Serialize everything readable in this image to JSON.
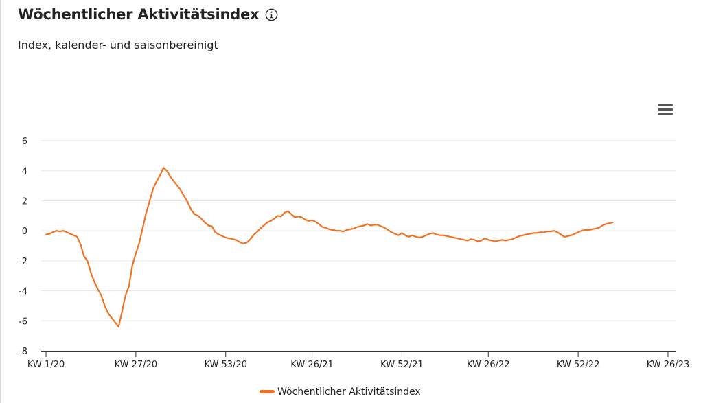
{
  "header": {
    "title": "Wöchentlicher Aktivitätsindex",
    "subtitle": "Index, kalender- und saisonbereinigt"
  },
  "icons": {
    "info": "info-circle-icon",
    "menu": "hamburger-menu-icon"
  },
  "colors": {
    "series": "#f07222",
    "grid": "#e6e6e6",
    "axis": "#333333"
  },
  "chart_data": {
    "type": "line",
    "title": "",
    "xlabel": "",
    "ylabel": "",
    "ylim": [
      -8,
      6
    ],
    "yticks": [
      6,
      4,
      2,
      0,
      -2,
      -4,
      -6,
      -8
    ],
    "xtick_labels": [
      "KW 1/20",
      "KW 27/20",
      "KW 53/20",
      "KW 26/21",
      "KW 52/21",
      "KW 26/22",
      "KW 52/22",
      "KW 26/23"
    ],
    "xtick_weeks": [
      0,
      26,
      52,
      77,
      103,
      128,
      154,
      180
    ],
    "grid": true,
    "legend": "bottom-center",
    "series": [
      {
        "name": "Wöchentlicher Aktivitätsindex",
        "color": "#f07222",
        "points": [
          [
            0,
            -0.25
          ],
          [
            1,
            -0.2
          ],
          [
            2,
            -0.1
          ],
          [
            3,
            0.0
          ],
          [
            4,
            -0.05
          ],
          [
            5,
            0.0
          ],
          [
            6,
            -0.1
          ],
          [
            7,
            -0.2
          ],
          [
            8,
            -0.3
          ],
          [
            9,
            -0.4
          ],
          [
            10,
            -0.9
          ],
          [
            11,
            -1.7
          ],
          [
            12,
            -2.0
          ],
          [
            13,
            -2.8
          ],
          [
            14,
            -3.4
          ],
          [
            15,
            -3.9
          ],
          [
            16,
            -4.3
          ],
          [
            17,
            -5.0
          ],
          [
            18,
            -5.5
          ],
          [
            19,
            -5.8
          ],
          [
            20,
            -6.1
          ],
          [
            21,
            -6.4
          ],
          [
            22,
            -5.4
          ],
          [
            23,
            -4.3
          ],
          [
            24,
            -3.7
          ],
          [
            25,
            -2.3
          ],
          [
            26,
            -1.5
          ],
          [
            27,
            -0.8
          ],
          [
            28,
            0.2
          ],
          [
            29,
            1.2
          ],
          [
            30,
            2.0
          ],
          [
            31,
            2.8
          ],
          [
            32,
            3.3
          ],
          [
            33,
            3.7
          ],
          [
            34,
            4.2
          ],
          [
            35,
            4.0
          ],
          [
            36,
            3.6
          ],
          [
            37,
            3.3
          ],
          [
            38,
            3.0
          ],
          [
            39,
            2.7
          ],
          [
            40,
            2.3
          ],
          [
            41,
            1.9
          ],
          [
            42,
            1.4
          ],
          [
            43,
            1.1
          ],
          [
            44,
            1.0
          ],
          [
            45,
            0.8
          ],
          [
            46,
            0.55
          ],
          [
            47,
            0.35
          ],
          [
            48,
            0.3
          ],
          [
            49,
            -0.1
          ],
          [
            50,
            -0.25
          ],
          [
            51,
            -0.35
          ],
          [
            52,
            -0.45
          ],
          [
            53,
            -0.5
          ],
          [
            54,
            -0.55
          ],
          [
            55,
            -0.6
          ],
          [
            56,
            -0.75
          ],
          [
            57,
            -0.85
          ],
          [
            58,
            -0.8
          ],
          [
            59,
            -0.6
          ],
          [
            60,
            -0.3
          ],
          [
            61,
            -0.1
          ],
          [
            62,
            0.15
          ],
          [
            63,
            0.35
          ],
          [
            64,
            0.55
          ],
          [
            65,
            0.65
          ],
          [
            66,
            0.8
          ],
          [
            67,
            1.0
          ],
          [
            68,
            0.95
          ],
          [
            69,
            1.2
          ],
          [
            70,
            1.3
          ],
          [
            71,
            1.1
          ],
          [
            72,
            0.9
          ],
          [
            73,
            0.95
          ],
          [
            74,
            0.9
          ],
          [
            75,
            0.75
          ],
          [
            76,
            0.65
          ],
          [
            77,
            0.7
          ],
          [
            78,
            0.6
          ],
          [
            79,
            0.45
          ],
          [
            80,
            0.25
          ],
          [
            81,
            0.2
          ],
          [
            82,
            0.1
          ],
          [
            83,
            0.05
          ],
          [
            84,
            0.0
          ],
          [
            85,
            0.0
          ],
          [
            86,
            -0.05
          ],
          [
            87,
            0.05
          ],
          [
            88,
            0.1
          ],
          [
            89,
            0.15
          ],
          [
            90,
            0.25
          ],
          [
            91,
            0.3
          ],
          [
            92,
            0.35
          ],
          [
            93,
            0.45
          ],
          [
            94,
            0.35
          ],
          [
            95,
            0.4
          ],
          [
            96,
            0.4
          ],
          [
            97,
            0.3
          ],
          [
            98,
            0.2
          ],
          [
            99,
            0.05
          ],
          [
            100,
            -0.1
          ],
          [
            101,
            -0.2
          ],
          [
            102,
            -0.3
          ],
          [
            103,
            -0.15
          ],
          [
            104,
            -0.3
          ],
          [
            105,
            -0.4
          ],
          [
            106,
            -0.3
          ],
          [
            107,
            -0.4
          ],
          [
            108,
            -0.45
          ],
          [
            109,
            -0.4
          ],
          [
            110,
            -0.3
          ],
          [
            111,
            -0.2
          ],
          [
            112,
            -0.15
          ],
          [
            113,
            -0.25
          ],
          [
            114,
            -0.3
          ],
          [
            115,
            -0.3
          ],
          [
            116,
            -0.35
          ],
          [
            117,
            -0.4
          ],
          [
            118,
            -0.45
          ],
          [
            119,
            -0.5
          ],
          [
            120,
            -0.55
          ],
          [
            121,
            -0.6
          ],
          [
            122,
            -0.65
          ],
          [
            123,
            -0.55
          ],
          [
            124,
            -0.6
          ],
          [
            125,
            -0.7
          ],
          [
            126,
            -0.65
          ],
          [
            127,
            -0.5
          ],
          [
            128,
            -0.6
          ],
          [
            129,
            -0.65
          ],
          [
            130,
            -0.7
          ],
          [
            131,
            -0.65
          ],
          [
            132,
            -0.6
          ],
          [
            133,
            -0.65
          ],
          [
            134,
            -0.6
          ],
          [
            135,
            -0.55
          ],
          [
            136,
            -0.45
          ],
          [
            137,
            -0.35
          ],
          [
            138,
            -0.3
          ],
          [
            139,
            -0.25
          ],
          [
            140,
            -0.2
          ],
          [
            141,
            -0.15
          ],
          [
            142,
            -0.15
          ],
          [
            143,
            -0.1
          ],
          [
            144,
            -0.1
          ],
          [
            145,
            -0.05
          ],
          [
            146,
            -0.05
          ],
          [
            147,
            0.0
          ],
          [
            148,
            -0.1
          ],
          [
            149,
            -0.25
          ],
          [
            150,
            -0.4
          ],
          [
            151,
            -0.35
          ],
          [
            152,
            -0.3
          ],
          [
            153,
            -0.2
          ],
          [
            154,
            -0.1
          ],
          [
            155,
            0.0
          ],
          [
            156,
            0.05
          ],
          [
            157,
            0.05
          ],
          [
            158,
            0.1
          ],
          [
            159,
            0.15
          ],
          [
            160,
            0.2
          ],
          [
            161,
            0.35
          ],
          [
            162,
            0.45
          ],
          [
            163,
            0.5
          ],
          [
            164,
            0.55
          ]
        ]
      }
    ]
  }
}
